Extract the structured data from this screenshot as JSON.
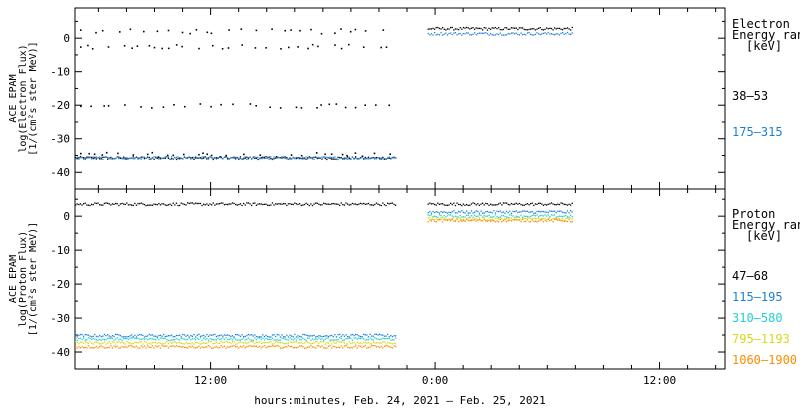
{
  "chart_data": [
    {
      "type": "scatter",
      "name": "electron",
      "ylabel": [
        "ACE EPAM",
        "log(Electron Flux)",
        "[1/(cm²s ster MeV)]"
      ],
      "ylim": [
        -45,
        9
      ],
      "yticks": [
        0,
        -10,
        -20,
        -30,
        -40
      ],
      "legend": {
        "title": [
          "Electron",
          "Energy ranges",
          "[keV]"
        ],
        "entries": [
          {
            "label": "38–53",
            "color": "#000000"
          },
          {
            "label": "175–315",
            "color": "#1f7fd6"
          }
        ]
      },
      "series": [
        {
          "name": "38–53",
          "color": "#000000",
          "segments": [
            {
              "x_start_h": 0,
              "x_end_h": 34.3,
              "level": -35.8
            },
            {
              "x_start_h": 37.7,
              "x_end_h": 53.1,
              "level": 2.8
            }
          ],
          "scatter_levels": [
            2.0,
            -2.5,
            -20.3,
            -34.8
          ]
        },
        {
          "name": "175–315",
          "color": "#1f7fd6",
          "segments": [
            {
              "x_start_h": 0,
              "x_end_h": 34.3,
              "level": -35.8
            },
            {
              "x_start_h": 37.7,
              "x_end_h": 53.1,
              "level": 1.3
            }
          ]
        }
      ]
    },
    {
      "type": "scatter",
      "name": "proton",
      "ylabel": [
        "ACE EPAM",
        "log(Proton Flux)",
        "[1/(cm²s ster MeV)]"
      ],
      "ylim": [
        -45,
        8
      ],
      "yticks": [
        0,
        -10,
        -20,
        -30,
        -40
      ],
      "legend": {
        "title": [
          "Proton",
          "Energy ranges",
          "[keV]"
        ],
        "entries": [
          {
            "label": "47–68",
            "color": "#000000"
          },
          {
            "label": "115–195",
            "color": "#1f7fd6"
          },
          {
            "label": "310–580",
            "color": "#22d0d0"
          },
          {
            "label": "795–1193",
            "color": "#d8d81a"
          },
          {
            "label": "1060–1900",
            "color": "#ff8c00"
          }
        ]
      },
      "series": [
        {
          "name": "47–68",
          "color": "#000000",
          "segments": [
            {
              "x_start_h": 0,
              "x_end_h": 34.3,
              "level": 3.5
            },
            {
              "x_start_h": 37.7,
              "x_end_h": 53.1,
              "level": 3.5
            }
          ]
        },
        {
          "name": "115–195",
          "color": "#1f7fd6",
          "segments": [
            {
              "x_start_h": 0,
              "x_end_h": 34.3,
              "level": -35.2
            },
            {
              "x_start_h": 37.7,
              "x_end_h": 53.1,
              "level": 1.2
            }
          ]
        },
        {
          "name": "310–580",
          "color": "#22d0d0",
          "segments": [
            {
              "x_start_h": 0,
              "x_end_h": 34.3,
              "level": -36.2
            },
            {
              "x_start_h": 37.7,
              "x_end_h": 53.1,
              "level": 0.0
            }
          ]
        },
        {
          "name": "795–1193",
          "color": "#d8d81a",
          "segments": [
            {
              "x_start_h": 0,
              "x_end_h": 34.3,
              "level": -37.3
            },
            {
              "x_start_h": 37.7,
              "x_end_h": 53.1,
              "level": -0.8
            }
          ]
        },
        {
          "name": "1060–1900",
          "color": "#ff8c00",
          "segments": [
            {
              "x_start_h": 0,
              "x_end_h": 34.3,
              "level": -38.5
            },
            {
              "x_start_h": 37.7,
              "x_end_h": 53.1,
              "level": -1.3
            }
          ]
        }
      ]
    }
  ],
  "xaxis": {
    "xlim_hours": [
      0,
      69.5
    ],
    "ticks": [
      {
        "h": 14.5,
        "label": "12:00"
      },
      {
        "h": 38.5,
        "label": "0:00"
      },
      {
        "h": 62.5,
        "label": "12:00"
      }
    ],
    "minor_every_h": 3,
    "xlabel": "hours:minutes, Feb. 24, 2021 – Feb. 25, 2021"
  }
}
